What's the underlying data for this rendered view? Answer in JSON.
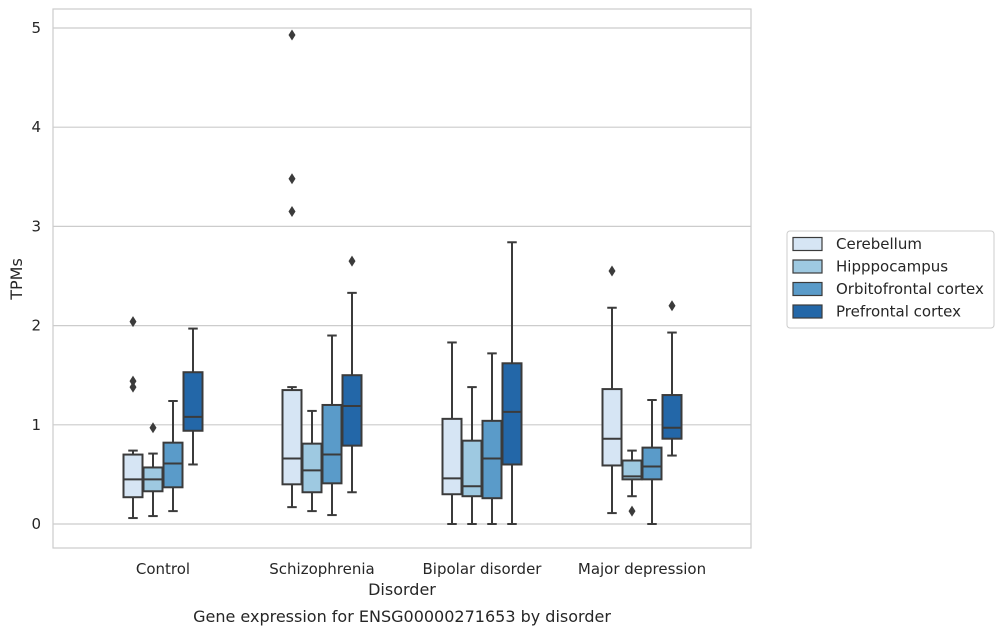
{
  "caption": "Gene expression for ENSG00000271653 by disorder",
  "chart_data": {
    "type": "boxplot",
    "title": "",
    "xlabel": "Disorder",
    "ylabel": "TPMs",
    "ylim": [
      -0.25,
      5.2
    ],
    "yticks": [
      0,
      1,
      2,
      3,
      4,
      5
    ],
    "grid": "horizontal",
    "legend_position": "right",
    "categories": [
      "Control",
      "Schizophrenia",
      "Bipolar disorder",
      "Major depression"
    ],
    "series": [
      {
        "name": "Cerebellum",
        "color": "#d6e5f4",
        "boxes": [
          {
            "whislo": 0.06,
            "q1": 0.27,
            "med": 0.45,
            "q3": 0.7,
            "whishi": 0.74,
            "fliers": [
              2.04,
              1.44,
              1.38
            ]
          },
          {
            "whislo": 0.17,
            "q1": 0.4,
            "med": 0.66,
            "q3": 1.35,
            "whishi": 1.38,
            "fliers": [
              4.93,
              3.48,
              3.15
            ]
          },
          {
            "whislo": 0.0,
            "q1": 0.3,
            "med": 0.46,
            "q3": 1.06,
            "whishi": 1.83,
            "fliers": []
          },
          {
            "whislo": 0.11,
            "q1": 0.59,
            "med": 0.86,
            "q3": 1.36,
            "whishi": 2.18,
            "fliers": [
              2.55
            ]
          }
        ]
      },
      {
        "name": "Hipppocampus",
        "color": "#9ec9e1",
        "boxes": [
          {
            "whislo": 0.08,
            "q1": 0.33,
            "med": 0.45,
            "q3": 0.57,
            "whishi": 0.71,
            "fliers": [
              0.97
            ]
          },
          {
            "whislo": 0.13,
            "q1": 0.32,
            "med": 0.54,
            "q3": 0.81,
            "whishi": 1.14,
            "fliers": []
          },
          {
            "whislo": 0.0,
            "q1": 0.28,
            "med": 0.38,
            "q3": 0.84,
            "whishi": 1.38,
            "fliers": []
          },
          {
            "whislo": 0.28,
            "q1": 0.45,
            "med": 0.48,
            "q3": 0.64,
            "whishi": 0.74,
            "fliers": [
              0.13
            ]
          }
        ]
      },
      {
        "name": "Orbitofrontal cortex",
        "color": "#5a9bc9",
        "boxes": [
          {
            "whislo": 0.13,
            "q1": 0.37,
            "med": 0.61,
            "q3": 0.82,
            "whishi": 1.24,
            "fliers": []
          },
          {
            "whislo": 0.09,
            "q1": 0.41,
            "med": 0.7,
            "q3": 1.2,
            "whishi": 1.9,
            "fliers": []
          },
          {
            "whislo": 0.0,
            "q1": 0.26,
            "med": 0.66,
            "q3": 1.04,
            "whishi": 1.72,
            "fliers": []
          },
          {
            "whislo": 0.0,
            "q1": 0.45,
            "med": 0.58,
            "q3": 0.77,
            "whishi": 1.25,
            "fliers": []
          }
        ]
      },
      {
        "name": "Prefrontal cortex",
        "color": "#2367a8",
        "boxes": [
          {
            "whislo": 0.6,
            "q1": 0.94,
            "med": 1.08,
            "q3": 1.53,
            "whishi": 1.97,
            "fliers": []
          },
          {
            "whislo": 0.32,
            "q1": 0.79,
            "med": 1.19,
            "q3": 1.5,
            "whishi": 2.33,
            "fliers": [
              2.65
            ]
          },
          {
            "whislo": 0.0,
            "q1": 0.6,
            "med": 1.13,
            "q3": 1.62,
            "whishi": 2.84,
            "fliers": []
          },
          {
            "whislo": 0.69,
            "q1": 0.86,
            "med": 0.97,
            "q3": 1.3,
            "whishi": 1.93,
            "fliers": [
              2.2
            ]
          }
        ]
      }
    ]
  }
}
